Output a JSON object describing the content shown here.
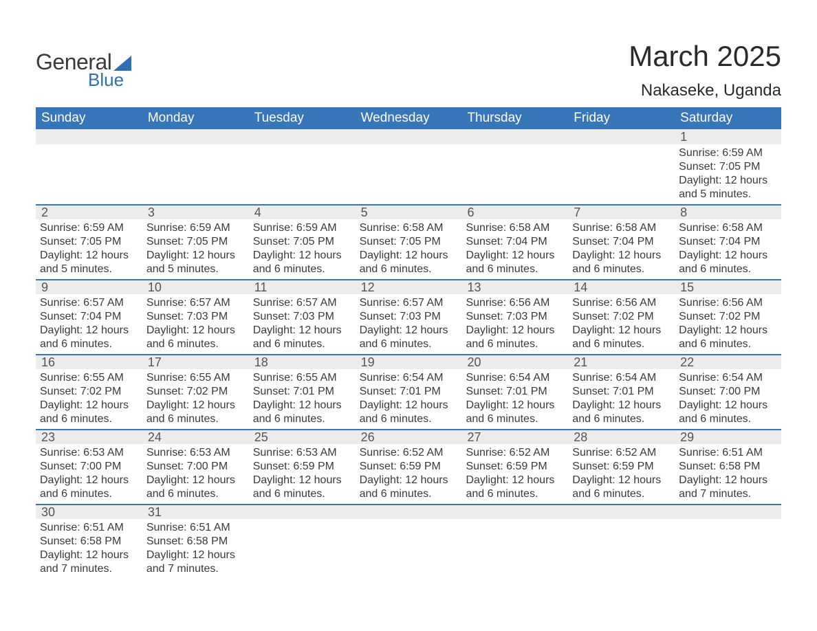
{
  "logo": {
    "word1": "General",
    "word2": "Blue",
    "shape_color": "#2e6fb3",
    "text_color": "#3a3a3a"
  },
  "title": "March 2025",
  "subtitle": "Nakaseke, Uganda",
  "colors": {
    "header_bg": "#3776b8",
    "header_text": "#ffffff",
    "band_bg": "#ececec",
    "divider": "#3776b8",
    "body_text": "#3a3a3a"
  },
  "day_headers": [
    "Sunday",
    "Monday",
    "Tuesday",
    "Wednesday",
    "Thursday",
    "Friday",
    "Saturday"
  ],
  "weeks": [
    [
      null,
      null,
      null,
      null,
      null,
      null,
      {
        "n": "1",
        "sunrise": "Sunrise: 6:59 AM",
        "sunset": "Sunset: 7:05 PM",
        "daylight1": "Daylight: 12 hours",
        "daylight2": "and 5 minutes."
      }
    ],
    [
      {
        "n": "2",
        "sunrise": "Sunrise: 6:59 AM",
        "sunset": "Sunset: 7:05 PM",
        "daylight1": "Daylight: 12 hours",
        "daylight2": "and 5 minutes."
      },
      {
        "n": "3",
        "sunrise": "Sunrise: 6:59 AM",
        "sunset": "Sunset: 7:05 PM",
        "daylight1": "Daylight: 12 hours",
        "daylight2": "and 5 minutes."
      },
      {
        "n": "4",
        "sunrise": "Sunrise: 6:59 AM",
        "sunset": "Sunset: 7:05 PM",
        "daylight1": "Daylight: 12 hours",
        "daylight2": "and 6 minutes."
      },
      {
        "n": "5",
        "sunrise": "Sunrise: 6:58 AM",
        "sunset": "Sunset: 7:05 PM",
        "daylight1": "Daylight: 12 hours",
        "daylight2": "and 6 minutes."
      },
      {
        "n": "6",
        "sunrise": "Sunrise: 6:58 AM",
        "sunset": "Sunset: 7:04 PM",
        "daylight1": "Daylight: 12 hours",
        "daylight2": "and 6 minutes."
      },
      {
        "n": "7",
        "sunrise": "Sunrise: 6:58 AM",
        "sunset": "Sunset: 7:04 PM",
        "daylight1": "Daylight: 12 hours",
        "daylight2": "and 6 minutes."
      },
      {
        "n": "8",
        "sunrise": "Sunrise: 6:58 AM",
        "sunset": "Sunset: 7:04 PM",
        "daylight1": "Daylight: 12 hours",
        "daylight2": "and 6 minutes."
      }
    ],
    [
      {
        "n": "9",
        "sunrise": "Sunrise: 6:57 AM",
        "sunset": "Sunset: 7:04 PM",
        "daylight1": "Daylight: 12 hours",
        "daylight2": "and 6 minutes."
      },
      {
        "n": "10",
        "sunrise": "Sunrise: 6:57 AM",
        "sunset": "Sunset: 7:03 PM",
        "daylight1": "Daylight: 12 hours",
        "daylight2": "and 6 minutes."
      },
      {
        "n": "11",
        "sunrise": "Sunrise: 6:57 AM",
        "sunset": "Sunset: 7:03 PM",
        "daylight1": "Daylight: 12 hours",
        "daylight2": "and 6 minutes."
      },
      {
        "n": "12",
        "sunrise": "Sunrise: 6:57 AM",
        "sunset": "Sunset: 7:03 PM",
        "daylight1": "Daylight: 12 hours",
        "daylight2": "and 6 minutes."
      },
      {
        "n": "13",
        "sunrise": "Sunrise: 6:56 AM",
        "sunset": "Sunset: 7:03 PM",
        "daylight1": "Daylight: 12 hours",
        "daylight2": "and 6 minutes."
      },
      {
        "n": "14",
        "sunrise": "Sunrise: 6:56 AM",
        "sunset": "Sunset: 7:02 PM",
        "daylight1": "Daylight: 12 hours",
        "daylight2": "and 6 minutes."
      },
      {
        "n": "15",
        "sunrise": "Sunrise: 6:56 AM",
        "sunset": "Sunset: 7:02 PM",
        "daylight1": "Daylight: 12 hours",
        "daylight2": "and 6 minutes."
      }
    ],
    [
      {
        "n": "16",
        "sunrise": "Sunrise: 6:55 AM",
        "sunset": "Sunset: 7:02 PM",
        "daylight1": "Daylight: 12 hours",
        "daylight2": "and 6 minutes."
      },
      {
        "n": "17",
        "sunrise": "Sunrise: 6:55 AM",
        "sunset": "Sunset: 7:02 PM",
        "daylight1": "Daylight: 12 hours",
        "daylight2": "and 6 minutes."
      },
      {
        "n": "18",
        "sunrise": "Sunrise: 6:55 AM",
        "sunset": "Sunset: 7:01 PM",
        "daylight1": "Daylight: 12 hours",
        "daylight2": "and 6 minutes."
      },
      {
        "n": "19",
        "sunrise": "Sunrise: 6:54 AM",
        "sunset": "Sunset: 7:01 PM",
        "daylight1": "Daylight: 12 hours",
        "daylight2": "and 6 minutes."
      },
      {
        "n": "20",
        "sunrise": "Sunrise: 6:54 AM",
        "sunset": "Sunset: 7:01 PM",
        "daylight1": "Daylight: 12 hours",
        "daylight2": "and 6 minutes."
      },
      {
        "n": "21",
        "sunrise": "Sunrise: 6:54 AM",
        "sunset": "Sunset: 7:01 PM",
        "daylight1": "Daylight: 12 hours",
        "daylight2": "and 6 minutes."
      },
      {
        "n": "22",
        "sunrise": "Sunrise: 6:54 AM",
        "sunset": "Sunset: 7:00 PM",
        "daylight1": "Daylight: 12 hours",
        "daylight2": "and 6 minutes."
      }
    ],
    [
      {
        "n": "23",
        "sunrise": "Sunrise: 6:53 AM",
        "sunset": "Sunset: 7:00 PM",
        "daylight1": "Daylight: 12 hours",
        "daylight2": "and 6 minutes."
      },
      {
        "n": "24",
        "sunrise": "Sunrise: 6:53 AM",
        "sunset": "Sunset: 7:00 PM",
        "daylight1": "Daylight: 12 hours",
        "daylight2": "and 6 minutes."
      },
      {
        "n": "25",
        "sunrise": "Sunrise: 6:53 AM",
        "sunset": "Sunset: 6:59 PM",
        "daylight1": "Daylight: 12 hours",
        "daylight2": "and 6 minutes."
      },
      {
        "n": "26",
        "sunrise": "Sunrise: 6:52 AM",
        "sunset": "Sunset: 6:59 PM",
        "daylight1": "Daylight: 12 hours",
        "daylight2": "and 6 minutes."
      },
      {
        "n": "27",
        "sunrise": "Sunrise: 6:52 AM",
        "sunset": "Sunset: 6:59 PM",
        "daylight1": "Daylight: 12 hours",
        "daylight2": "and 6 minutes."
      },
      {
        "n": "28",
        "sunrise": "Sunrise: 6:52 AM",
        "sunset": "Sunset: 6:59 PM",
        "daylight1": "Daylight: 12 hours",
        "daylight2": "and 6 minutes."
      },
      {
        "n": "29",
        "sunrise": "Sunrise: 6:51 AM",
        "sunset": "Sunset: 6:58 PM",
        "daylight1": "Daylight: 12 hours",
        "daylight2": "and 7 minutes."
      }
    ],
    [
      {
        "n": "30",
        "sunrise": "Sunrise: 6:51 AM",
        "sunset": "Sunset: 6:58 PM",
        "daylight1": "Daylight: 12 hours",
        "daylight2": "and 7 minutes."
      },
      {
        "n": "31",
        "sunrise": "Sunrise: 6:51 AM",
        "sunset": "Sunset: 6:58 PM",
        "daylight1": "Daylight: 12 hours",
        "daylight2": "and 7 minutes."
      },
      null,
      null,
      null,
      null,
      null
    ]
  ]
}
